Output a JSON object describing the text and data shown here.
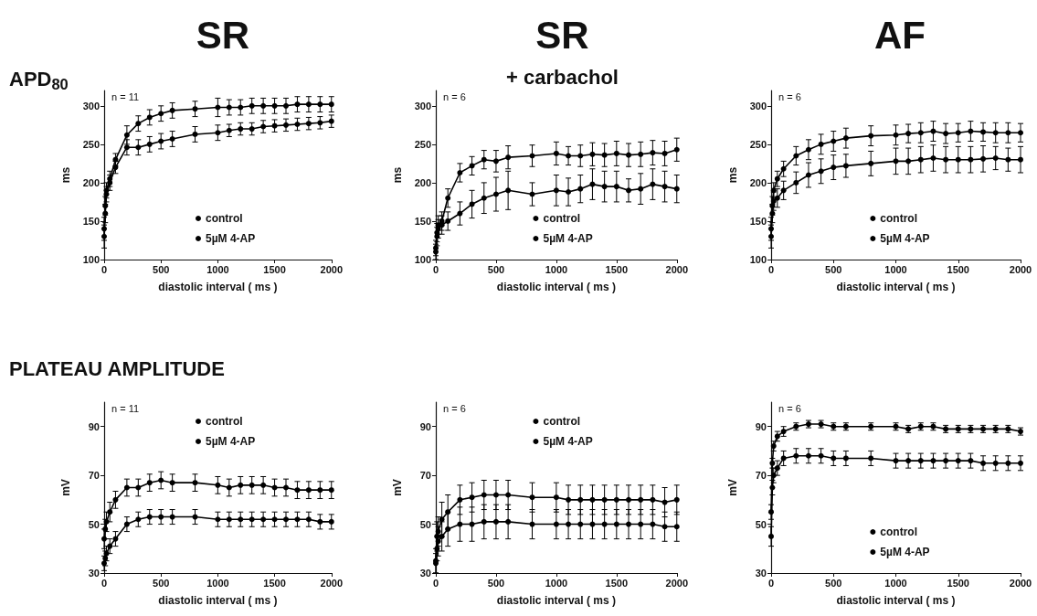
{
  "chart_data": [
    {
      "type": "line",
      "title": "SR",
      "xlabel": "diastolic interval ( ms )",
      "ylabel": "ms",
      "annotations": [
        "n = 11",
        "APD$_{80}$"
      ],
      "xlim": [
        0,
        2000
      ],
      "xticks": [
        0,
        500,
        1000,
        1500,
        2000
      ],
      "ylim": [
        100,
        320
      ],
      "yticks": [
        100,
        150,
        200,
        250,
        300
      ],
      "grid": false,
      "legend": "bottom",
      "marker": "circle",
      "line_style": "solid",
      "x": [
        0,
        10,
        20,
        50,
        100,
        200,
        300,
        400,
        500,
        600,
        800,
        1000,
        1100,
        1200,
        1300,
        1400,
        1500,
        1600,
        1700,
        1800,
        1900,
        2000
      ],
      "series": [
        {
          "name": "control",
          "color": "#000000",
          "values": [
            130,
            160,
            185,
            200,
            220,
            246,
            246,
            250,
            254,
            257,
            263,
            265,
            268,
            270,
            270,
            273,
            274,
            275,
            276,
            277,
            278,
            280
          ],
          "errors": [
            15,
            12,
            10,
            10,
            8,
            10,
            10,
            10,
            10,
            10,
            10,
            10,
            8,
            8,
            8,
            8,
            8,
            8,
            8,
            8,
            8,
            8
          ]
        },
        {
          "name": "5µM 4-AP",
          "color": "#000000",
          "values": [
            140,
            170,
            190,
            205,
            230,
            262,
            277,
            285,
            290,
            294,
            296,
            298,
            298,
            298,
            300,
            300,
            300,
            300,
            302,
            302,
            302,
            302
          ],
          "errors": [
            15,
            12,
            10,
            10,
            8,
            12,
            10,
            10,
            10,
            10,
            10,
            12,
            10,
            10,
            10,
            10,
            10,
            10,
            10,
            10,
            10,
            10
          ]
        }
      ]
    },
    {
      "type": "line",
      "title": "SR",
      "subtitle": "+ carbachol",
      "xlabel": "diastolic interval ( ms )",
      "ylabel": "ms",
      "annotations": [
        "n = 6"
      ],
      "xlim": [
        0,
        2000
      ],
      "xticks": [
        0,
        500,
        1000,
        1500,
        2000
      ],
      "ylim": [
        100,
        320
      ],
      "yticks": [
        100,
        150,
        200,
        250,
        300
      ],
      "grid": false,
      "legend": "bottom",
      "marker": "circle",
      "line_style": "solid",
      "x": [
        0,
        10,
        20,
        50,
        100,
        200,
        300,
        400,
        500,
        600,
        800,
        1000,
        1100,
        1200,
        1300,
        1400,
        1500,
        1600,
        1700,
        1800,
        1900,
        2000
      ],
      "series": [
        {
          "name": "control",
          "color": "#000000",
          "values": [
            110,
            130,
            140,
            145,
            150,
            160,
            172,
            180,
            185,
            190,
            185,
            190,
            188,
            192,
            198,
            195,
            195,
            190,
            192,
            198,
            195,
            192
          ],
          "errors": [
            10,
            12,
            12,
            12,
            12,
            15,
            18,
            20,
            22,
            25,
            15,
            20,
            18,
            18,
            20,
            20,
            20,
            15,
            20,
            20,
            20,
            18
          ]
        },
        {
          "name": "5µM 4-AP",
          "color": "#000000",
          "values": [
            115,
            135,
            145,
            150,
            180,
            213,
            222,
            230,
            228,
            233,
            235,
            238,
            235,
            235,
            237,
            236,
            238,
            236,
            237,
            239,
            238,
            243
          ],
          "errors": [
            10,
            12,
            12,
            12,
            12,
            12,
            12,
            12,
            14,
            15,
            14,
            15,
            12,
            14,
            15,
            15,
            16,
            15,
            16,
            16,
            16,
            15
          ]
        }
      ]
    },
    {
      "type": "line",
      "title": "AF",
      "xlabel": "diastolic interval ( ms )",
      "ylabel": "ms",
      "annotations": [
        "n = 6"
      ],
      "xlim": [
        0,
        2000
      ],
      "xticks": [
        0,
        500,
        1000,
        1500,
        2000
      ],
      "ylim": [
        100,
        320
      ],
      "yticks": [
        100,
        150,
        200,
        250,
        300
      ],
      "grid": false,
      "legend": "bottom",
      "marker": "circle",
      "line_style": "solid",
      "x": [
        0,
        10,
        20,
        50,
        100,
        200,
        300,
        400,
        500,
        600,
        800,
        1000,
        1100,
        1200,
        1300,
        1400,
        1500,
        1600,
        1700,
        1800,
        1900,
        2000
      ],
      "series": [
        {
          "name": "control",
          "color": "#000000",
          "values": [
            130,
            160,
            176,
            180,
            190,
            200,
            210,
            215,
            220,
            222,
            225,
            228,
            228,
            230,
            232,
            230,
            230,
            230,
            231,
            232,
            230,
            230
          ],
          "errors": [
            15,
            12,
            12,
            12,
            12,
            14,
            16,
            16,
            16,
            15,
            16,
            17,
            17,
            17,
            17,
            17,
            17,
            17,
            17,
            15,
            15,
            17
          ]
        },
        {
          "name": "5µM 4-AP",
          "color": "#000000",
          "values": [
            140,
            170,
            190,
            205,
            218,
            235,
            243,
            250,
            254,
            258,
            261,
            262,
            264,
            265,
            267,
            264,
            265,
            267,
            266,
            265,
            265,
            265
          ],
          "errors": [
            15,
            12,
            10,
            10,
            10,
            12,
            13,
            13,
            13,
            13,
            13,
            13,
            12,
            13,
            13,
            13,
            12,
            13,
            12,
            13,
            13,
            12
          ]
        }
      ]
    },
    {
      "type": "line",
      "xlabel": "diastolic interval ( ms )",
      "ylabel": "mV",
      "annotations": [
        "n = 11",
        "PLATEAU AMPLITUDE"
      ],
      "xlim": [
        0,
        2000
      ],
      "xticks": [
        0,
        500,
        1000,
        1500,
        2000
      ],
      "ylim": [
        30,
        100
      ],
      "yticks": [
        30,
        50,
        70,
        90
      ],
      "grid": false,
      "legend": "top",
      "marker": "circle",
      "line_style": "solid",
      "x": [
        0,
        10,
        20,
        50,
        100,
        200,
        300,
        400,
        500,
        600,
        800,
        1000,
        1100,
        1200,
        1300,
        1400,
        1500,
        1600,
        1700,
        1800,
        1900,
        2000
      ],
      "series": [
        {
          "name": "control",
          "color": "#000000",
          "values": [
            34,
            36,
            38,
            41,
            44,
            50,
            52,
            53,
            53,
            53,
            53,
            52,
            52,
            52,
            52,
            52,
            52,
            52,
            52,
            52,
            51,
            51
          ],
          "errors": [
            3,
            3,
            3,
            3,
            3,
            3,
            3,
            3,
            3,
            3,
            3,
            3,
            3,
            3,
            3,
            3,
            3,
            3,
            3,
            3,
            3,
            3
          ]
        },
        {
          "name": "5µM 4-AP",
          "color": "#000000",
          "values": [
            44,
            48,
            51,
            55,
            60,
            65,
            65,
            67,
            68,
            67,
            67,
            66,
            65,
            66,
            66,
            66,
            65,
            65,
            64,
            64,
            64,
            64
          ],
          "errors": [
            4,
            4,
            4,
            4,
            3.5,
            3.5,
            3.5,
            3.5,
            3.5,
            3.5,
            3.5,
            3.5,
            3.5,
            3.5,
            3.5,
            3.5,
            3.5,
            3.5,
            3.5,
            3.5,
            3.5,
            3.5
          ]
        }
      ]
    },
    {
      "type": "line",
      "xlabel": "diastolic interval ( ms )",
      "ylabel": "mV",
      "annotations": [
        "n = 6"
      ],
      "xlim": [
        0,
        2000
      ],
      "xticks": [
        0,
        500,
        1000,
        1500,
        2000
      ],
      "ylim": [
        30,
        100
      ],
      "yticks": [
        30,
        50,
        70,
        90
      ],
      "grid": false,
      "legend": "top",
      "marker": "circle",
      "line_style": "solid",
      "x": [
        0,
        10,
        20,
        50,
        100,
        200,
        300,
        400,
        500,
        600,
        800,
        1000,
        1100,
        1200,
        1300,
        1400,
        1500,
        1600,
        1700,
        1800,
        1900,
        2000
      ],
      "series": [
        {
          "name": "control",
          "color": "#000000",
          "values": [
            34,
            40,
            43,
            45,
            48,
            50,
            50,
            51,
            51,
            51,
            50,
            50,
            50,
            50,
            50,
            50,
            50,
            50,
            50,
            50,
            49,
            49
          ],
          "errors": [
            4,
            5,
            6,
            6,
            7,
            7,
            7,
            7,
            7,
            7,
            6,
            6,
            6,
            6,
            6,
            6,
            6,
            6,
            6,
            6,
            6,
            6
          ]
        },
        {
          "name": "5µM 4-AP",
          "color": "#000000",
          "values": [
            35,
            45,
            47,
            52,
            55,
            60,
            61,
            62,
            62,
            62,
            61,
            61,
            60,
            60,
            60,
            60,
            60,
            60,
            60,
            60,
            59,
            60
          ],
          "errors": [
            5,
            6,
            6,
            7,
            7,
            6,
            6,
            6,
            6,
            6,
            6,
            6,
            6,
            6,
            6,
            6,
            6,
            6,
            6,
            6,
            6,
            6
          ]
        }
      ]
    },
    {
      "type": "line",
      "xlabel": "diastolic interval ( ms )",
      "ylabel": "mV",
      "annotations": [
        "n = 6"
      ],
      "xlim": [
        0,
        2000
      ],
      "xticks": [
        0,
        500,
        1000,
        1500,
        2000
      ],
      "ylim": [
        30,
        100
      ],
      "yticks": [
        30,
        50,
        70,
        90
      ],
      "grid": false,
      "legend": "bottom",
      "marker": "circle",
      "line_style": "solid",
      "x": [
        0,
        10,
        20,
        50,
        100,
        200,
        300,
        400,
        500,
        600,
        800,
        1000,
        1100,
        1200,
        1300,
        1400,
        1500,
        1600,
        1700,
        1800,
        1900,
        2000
      ],
      "series": [
        {
          "name": "control",
          "color": "#000000",
          "values": [
            45,
            65,
            70,
            73,
            77,
            78,
            78,
            78,
            77,
            77,
            77,
            76,
            76,
            76,
            76,
            76,
            76,
            76,
            75,
            75,
            75,
            75
          ],
          "errors": [
            4,
            3,
            3,
            3,
            3,
            3,
            3,
            3,
            3,
            3,
            3,
            3,
            3,
            3,
            3,
            3,
            3,
            3,
            3,
            3,
            3,
            3
          ]
        },
        {
          "name": "5µM 4-AP",
          "color": "#000000",
          "values": [
            55,
            75,
            82,
            86,
            88,
            90,
            91,
            91,
            90,
            90,
            90,
            90,
            89,
            90,
            90,
            89,
            89,
            89,
            89,
            89,
            89,
            88
          ],
          "errors": [
            3,
            2,
            2,
            2,
            2,
            1.5,
            1.5,
            1.5,
            1.5,
            1.5,
            1.5,
            1.5,
            1.5,
            1.5,
            1.5,
            1.5,
            1.5,
            1.5,
            1.5,
            1.5,
            1.5,
            1.5
          ]
        }
      ]
    }
  ]
}
